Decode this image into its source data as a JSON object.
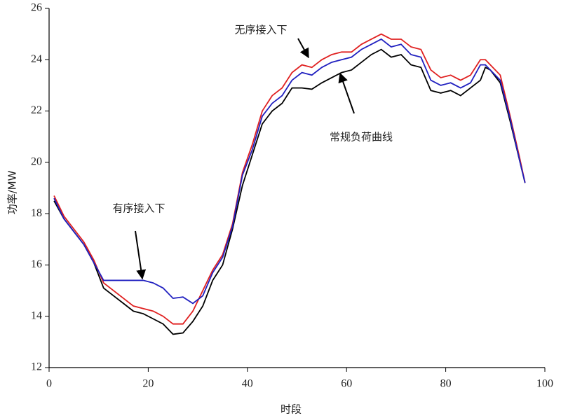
{
  "chart_data": {
    "type": "line",
    "xlabel": "时段",
    "ylabel": "功率/MW",
    "xlim": [
      0,
      100
    ],
    "ylim": [
      12,
      26
    ],
    "xticks": [
      0,
      20,
      40,
      60,
      80,
      100
    ],
    "yticks": [
      12,
      14,
      16,
      18,
      20,
      22,
      24,
      26
    ],
    "x": [
      1,
      3,
      5,
      7,
      9,
      11,
      13,
      15,
      17,
      19,
      21,
      23,
      25,
      27,
      29,
      31,
      33,
      35,
      37,
      39,
      41,
      43,
      45,
      47,
      49,
      51,
      53,
      55,
      57,
      59,
      61,
      63,
      65,
      67,
      69,
      71,
      73,
      75,
      77,
      79,
      81,
      83,
      85,
      87,
      88,
      89,
      91,
      93,
      95,
      96
    ],
    "series": [
      {
        "name": "常规负荷曲线",
        "color": "#000000",
        "values": [
          18.5,
          17.8,
          17.3,
          16.8,
          16.1,
          15.1,
          14.8,
          14.5,
          14.2,
          14.1,
          13.9,
          13.7,
          13.3,
          13.35,
          13.8,
          14.4,
          15.4,
          16.0,
          17.4,
          19.1,
          20.3,
          21.5,
          22.0,
          22.3,
          22.9,
          22.9,
          22.85,
          23.1,
          23.3,
          23.5,
          23.6,
          23.9,
          24.2,
          24.4,
          24.1,
          24.2,
          23.8,
          23.7,
          22.8,
          22.7,
          22.8,
          22.6,
          22.9,
          23.2,
          23.7,
          23.6,
          23.1,
          21.6,
          20.0,
          19.2
        ]
      },
      {
        "name": "无序接入下",
        "color": "#e02020",
        "values": [
          18.7,
          17.9,
          17.4,
          16.9,
          16.2,
          15.3,
          15.0,
          14.7,
          14.4,
          14.3,
          14.2,
          14.0,
          13.7,
          13.7,
          14.2,
          15.0,
          15.8,
          16.4,
          17.6,
          19.6,
          20.7,
          22.0,
          22.6,
          22.9,
          23.5,
          23.8,
          23.7,
          24.0,
          24.2,
          24.3,
          24.3,
          24.6,
          24.8,
          25.0,
          24.8,
          24.8,
          24.5,
          24.4,
          23.6,
          23.3,
          23.4,
          23.2,
          23.4,
          24.0,
          24.0,
          23.8,
          23.4,
          21.8,
          20.1,
          19.2
        ]
      },
      {
        "name": "有序接入下",
        "color": "#2020c0",
        "values": [
          18.6,
          17.8,
          17.3,
          16.8,
          16.1,
          15.4,
          15.4,
          15.4,
          15.4,
          15.4,
          15.3,
          15.1,
          14.7,
          14.75,
          14.5,
          14.8,
          15.7,
          16.3,
          17.5,
          19.5,
          20.5,
          21.8,
          22.3,
          22.6,
          23.2,
          23.5,
          23.4,
          23.7,
          23.9,
          24.0,
          24.1,
          24.4,
          24.6,
          24.8,
          24.5,
          24.6,
          24.2,
          24.1,
          23.2,
          23.0,
          23.1,
          22.9,
          23.1,
          23.8,
          23.8,
          23.6,
          23.2,
          21.7,
          20.0,
          19.2
        ]
      }
    ]
  }
}
